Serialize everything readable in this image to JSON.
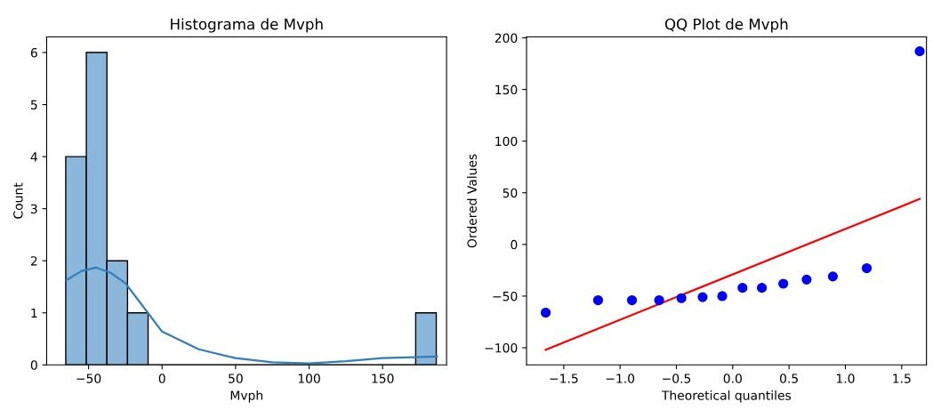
{
  "chart_data": [
    {
      "type": "histogram",
      "title": "Histograma de Mvph",
      "xlabel": "Mvph",
      "ylabel": "Count",
      "xlim": [
        -78.5,
        193.5
      ],
      "ylim": [
        0,
        6.3
      ],
      "xticks": [
        {
          "value": -50,
          "label": "−50"
        },
        0,
        50,
        100,
        150
      ],
      "yticks": [
        0,
        1,
        2,
        3,
        4,
        5,
        6
      ],
      "grid": false,
      "legend": false,
      "series": [
        {
          "color": "#8bb8da",
          "bins": [
            -65.5,
            -51.5,
            -37.5,
            -23.5,
            -9.5,
            4.5,
            18.5,
            32.5,
            46.5,
            60.5,
            74.5,
            88.5,
            102.5,
            116.5,
            130.5,
            144.5,
            158.5,
            172.5,
            186.5
          ],
          "values": [
            4,
            6,
            2,
            1,
            0,
            0,
            0,
            0,
            0,
            0,
            0,
            0,
            0,
            0,
            0,
            0,
            0,
            1
          ]
        },
        {
          "type": "line",
          "color": "#2f7fbc",
          "x": [
            -65,
            -55,
            -45,
            -35,
            -25,
            -15,
            0,
            25,
            50,
            75,
            100,
            125,
            150,
            187
          ],
          "values": [
            1.63,
            1.8,
            1.87,
            1.77,
            1.57,
            1.2,
            0.64,
            0.3,
            0.13,
            0.05,
            0.03,
            0.07,
            0.13,
            0.16
          ]
        }
      ]
    },
    {
      "type": "scatter",
      "title": "QQ Plot de Mvph",
      "xlabel": "Theoretical quantiles",
      "ylabel": "Ordered Values",
      "xlim": [
        -1.83,
        1.72
      ],
      "ylim": [
        -116.6,
        200.9
      ],
      "xticks": [
        {
          "value": -1.5,
          "label": "−1.5"
        },
        {
          "value": -1.0,
          "label": "−1.0"
        },
        {
          "value": -0.5,
          "label": "−0.5"
        },
        {
          "value": 0,
          "label": "0.0"
        },
        {
          "value": 0.5,
          "label": "0.5"
        },
        {
          "value": 1.0,
          "label": "1.0"
        },
        {
          "value": 1.5,
          "label": "1.5"
        }
      ],
      "yticks": [
        {
          "value": -100,
          "label": "−100"
        },
        {
          "value": -50,
          "label": "−50"
        },
        0,
        50,
        100,
        150,
        200
      ],
      "grid": false,
      "legend": false,
      "series": [
        {
          "color": "#0000ff",
          "marker": "circle",
          "x": [
            -1.66,
            -1.195,
            -0.894,
            -0.653,
            -0.455,
            -0.267,
            -0.093,
            0.087,
            0.259,
            0.449,
            0.656,
            0.889,
            1.19,
            1.66
          ],
          "values": [
            -66,
            -54,
            -54,
            -54,
            -52,
            -51,
            -50,
            -42,
            -42,
            -38,
            -34,
            -31,
            -23,
            187
          ]
        },
        {
          "type": "line",
          "color": "#ff0000",
          "x": [
            -1.66,
            1.66
          ],
          "values": [
            -102,
            44
          ]
        }
      ]
    }
  ]
}
